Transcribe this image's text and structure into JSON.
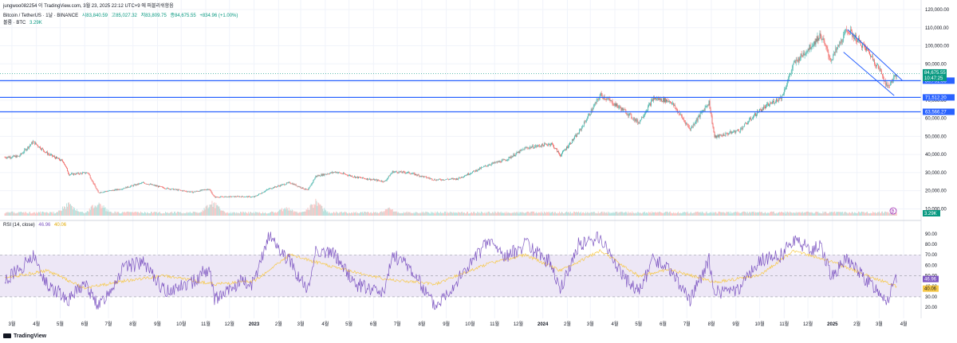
{
  "header": {
    "publish_line": "jungwoo082254 이 TradingView.com, 3월 23, 2025 22:12 UTC+9 에 퍼블리쉬함음",
    "symbol": "Bitcoin / TetherUS · 1날 · BINANCE",
    "open": "시83,840.59",
    "high": "고85,027.32",
    "low": "저83,809.75",
    "close": "종84,675.55",
    "change": "+834.96 (+1.00%)",
    "volume_label": "볼륨 · BTC",
    "volume_value": "3.29K"
  },
  "rsi_label": "RSI (14, close)",
  "rsi_value": "46.96",
  "rsi_ma_value": "40.06",
  "logo_text": "TradingView",
  "colors": {
    "up": "#26a69a",
    "down": "#ef5350",
    "level": "#2962ff",
    "rsi": "#7e57c2",
    "rsi_ma": "#f7c948",
    "rsi_band": "#ede7f6",
    "price_tag": "#089981",
    "volume_tag": "#089981"
  },
  "chart_data": [
    {
      "type": "candlestick",
      "title": "Bitcoin / TetherUS · 1날 · BINANCE",
      "y_ticks": [
        "120,000.00",
        "110,000.00",
        "100,000.00",
        "90,000.00",
        "80,000.00",
        "70,000.00",
        "60,000.00",
        "50,000.00",
        "40,000.00",
        "30,000.00",
        "20,000.00",
        "10,000.00"
      ],
      "ylim": [
        8000,
        120000
      ],
      "x_ticks": [
        "3월",
        "4월",
        "5월",
        "6월",
        "7월",
        "8월",
        "9월",
        "10월",
        "11월",
        "12월",
        "2023",
        "2월",
        "3월",
        "4월",
        "5월",
        "6월",
        "7월",
        "8월",
        "9월",
        "10월",
        "11월",
        "12월",
        "2024",
        "2월",
        "3월",
        "4월",
        "5월",
        "6월",
        "7월",
        "8월",
        "9월",
        "10월",
        "11월",
        "12월",
        "2025",
        "2월",
        "3월",
        "4월"
      ],
      "x_dates": [
        "2022-03-01",
        "2022-04-01",
        "2022-05-01",
        "2022-06-01",
        "2022-07-01",
        "2022-08-01",
        "2022-09-01",
        "2022-10-01",
        "2022-11-01",
        "2022-12-01",
        "2023-01-01",
        "2023-02-01",
        "2023-03-01",
        "2023-04-01",
        "2023-05-01",
        "2023-06-01",
        "2023-07-01",
        "2023-08-01",
        "2023-09-01",
        "2023-10-01",
        "2023-11-01",
        "2023-12-01",
        "2024-01-01",
        "2024-02-01",
        "2024-03-01",
        "2024-04-01",
        "2024-05-01",
        "2024-06-01",
        "2024-07-01",
        "2024-08-01",
        "2024-09-01",
        "2024-10-01",
        "2024-11-01",
        "2024-12-01",
        "2025-01-01",
        "2025-02-01",
        "2025-03-01",
        "2025-04-01"
      ],
      "close_path": [
        {
          "date": "2022-02-20",
          "close": 38500
        },
        {
          "date": "2022-03-10",
          "close": 39000
        },
        {
          "date": "2022-03-28",
          "close": 47000
        },
        {
          "date": "2022-04-15",
          "close": 40500
        },
        {
          "date": "2022-05-05",
          "close": 36000
        },
        {
          "date": "2022-05-12",
          "close": 29000
        },
        {
          "date": "2022-06-05",
          "close": 30000
        },
        {
          "date": "2022-06-18",
          "close": 19000
        },
        {
          "date": "2022-07-15",
          "close": 20800
        },
        {
          "date": "2022-08-14",
          "close": 24400
        },
        {
          "date": "2022-09-10",
          "close": 21500
        },
        {
          "date": "2022-10-15",
          "close": 19200
        },
        {
          "date": "2022-11-05",
          "close": 21000
        },
        {
          "date": "2022-11-12",
          "close": 16500
        },
        {
          "date": "2022-12-15",
          "close": 16800
        },
        {
          "date": "2023-01-01",
          "close": 16600
        },
        {
          "date": "2023-01-20",
          "close": 21100
        },
        {
          "date": "2023-02-15",
          "close": 24500
        },
        {
          "date": "2023-03-10",
          "close": 20200
        },
        {
          "date": "2023-03-20",
          "close": 28000
        },
        {
          "date": "2023-04-14",
          "close": 30400
        },
        {
          "date": "2023-05-10",
          "close": 27500
        },
        {
          "date": "2023-06-15",
          "close": 25100
        },
        {
          "date": "2023-06-25",
          "close": 30500
        },
        {
          "date": "2023-07-15",
          "close": 30000
        },
        {
          "date": "2023-08-18",
          "close": 26000
        },
        {
          "date": "2023-09-15",
          "close": 26600
        },
        {
          "date": "2023-10-25",
          "close": 34500
        },
        {
          "date": "2023-11-15",
          "close": 37000
        },
        {
          "date": "2023-12-10",
          "close": 43500
        },
        {
          "date": "2024-01-12",
          "close": 46000
        },
        {
          "date": "2024-01-23",
          "close": 39500
        },
        {
          "date": "2024-02-15",
          "close": 52000
        },
        {
          "date": "2024-03-14",
          "close": 73000
        },
        {
          "date": "2024-04-15",
          "close": 63500
        },
        {
          "date": "2024-05-01",
          "close": 57500
        },
        {
          "date": "2024-05-20",
          "close": 71000
        },
        {
          "date": "2024-06-10",
          "close": 69500
        },
        {
          "date": "2024-07-05",
          "close": 54000
        },
        {
          "date": "2024-07-29",
          "close": 69000
        },
        {
          "date": "2024-08-05",
          "close": 49500
        },
        {
          "date": "2024-09-06",
          "close": 53500
        },
        {
          "date": "2024-09-30",
          "close": 64000
        },
        {
          "date": "2024-10-29",
          "close": 72000
        },
        {
          "date": "2024-11-13",
          "close": 90000
        },
        {
          "date": "2024-12-05",
          "close": 100000
        },
        {
          "date": "2024-12-17",
          "close": 106000
        },
        {
          "date": "2024-12-30",
          "close": 92000
        },
        {
          "date": "2025-01-20",
          "close": 109000
        },
        {
          "date": "2025-02-15",
          "close": 97000
        },
        {
          "date": "2025-03-04",
          "close": 85000
        },
        {
          "date": "2025-03-11",
          "close": 77000
        },
        {
          "date": "2025-03-23",
          "close": 84675
        }
      ],
      "last_price": "84,675.55",
      "countdown": "10:47:25",
      "horizontal_levels": [
        {
          "value": 80751.66,
          "label": "80,751.66"
        },
        {
          "value": 71512.2,
          "label": "71,512.20"
        },
        {
          "value": 63566.27,
          "label": "63,566.27"
        }
      ],
      "channel_lines": [
        {
          "from": {
            "date": "2025-01-20",
            "price": 109000
          },
          "to": {
            "date": "2025-03-30",
            "price": 81000
          }
        },
        {
          "from": {
            "date": "2025-01-15",
            "price": 96500
          },
          "to": {
            "date": "2025-03-20",
            "price": 72500
          }
        }
      ],
      "volume": {
        "series_name": "볼륨 · BTC",
        "last_value": "3.29K",
        "peaks": [
          {
            "date": "2022-05-12",
            "level": 0.9
          },
          {
            "date": "2022-06-18",
            "level": 1.0
          },
          {
            "date": "2022-11-10",
            "level": 1.0
          },
          {
            "date": "2023-03-20",
            "level": 1.0
          },
          {
            "date": "2023-02-10",
            "level": 0.6
          },
          {
            "date": "2023-06-20",
            "level": 0.5
          }
        ]
      }
    },
    {
      "type": "line",
      "title": "RSI (14, close)",
      "y_ticks": [
        "90.00",
        "80.00",
        "70.00",
        "60.00",
        "50.00",
        "40.00",
        "30.00",
        "20.00"
      ],
      "ylim": [
        14,
        96
      ],
      "band": [
        30,
        70
      ],
      "midline": 50,
      "series": [
        {
          "name": "RSI (14, close)",
          "points": [
            {
              "date": "2022-02-20",
              "value": 45
            },
            {
              "date": "2022-03-28",
              "value": 68
            },
            {
              "date": "2022-04-15",
              "value": 42
            },
            {
              "date": "2022-05-12",
              "value": 28
            },
            {
              "date": "2022-06-01",
              "value": 44
            },
            {
              "date": "2022-06-18",
              "value": 20
            },
            {
              "date": "2022-07-20",
              "value": 58
            },
            {
              "date": "2022-08-14",
              "value": 62
            },
            {
              "date": "2022-09-10",
              "value": 36
            },
            {
              "date": "2022-10-15",
              "value": 44
            },
            {
              "date": "2022-11-05",
              "value": 58
            },
            {
              "date": "2022-11-12",
              "value": 27
            },
            {
              "date": "2022-12-15",
              "value": 44
            },
            {
              "date": "2023-01-01",
              "value": 42
            },
            {
              "date": "2023-01-20",
              "value": 88
            },
            {
              "date": "2023-02-15",
              "value": 64
            },
            {
              "date": "2023-03-10",
              "value": 36
            },
            {
              "date": "2023-03-20",
              "value": 76
            },
            {
              "date": "2023-04-14",
              "value": 70
            },
            {
              "date": "2023-05-10",
              "value": 42
            },
            {
              "date": "2023-06-15",
              "value": 34
            },
            {
              "date": "2023-06-25",
              "value": 70
            },
            {
              "date": "2023-07-15",
              "value": 60
            },
            {
              "date": "2023-08-18",
              "value": 21
            },
            {
              "date": "2023-09-15",
              "value": 46
            },
            {
              "date": "2023-10-25",
              "value": 84
            },
            {
              "date": "2023-11-15",
              "value": 68
            },
            {
              "date": "2023-12-10",
              "value": 80
            },
            {
              "date": "2024-01-12",
              "value": 62
            },
            {
              "date": "2024-01-23",
              "value": 36
            },
            {
              "date": "2024-02-15",
              "value": 80
            },
            {
              "date": "2024-03-14",
              "value": 86
            },
            {
              "date": "2024-04-15",
              "value": 46
            },
            {
              "date": "2024-05-01",
              "value": 34
            },
            {
              "date": "2024-05-20",
              "value": 66
            },
            {
              "date": "2024-06-10",
              "value": 56
            },
            {
              "date": "2024-07-05",
              "value": 26
            },
            {
              "date": "2024-07-29",
              "value": 66
            },
            {
              "date": "2024-08-05",
              "value": 34
            },
            {
              "date": "2024-09-06",
              "value": 36
            },
            {
              "date": "2024-09-30",
              "value": 64
            },
            {
              "date": "2024-10-29",
              "value": 70
            },
            {
              "date": "2024-11-13",
              "value": 86
            },
            {
              "date": "2024-12-05",
              "value": 74
            },
            {
              "date": "2024-12-17",
              "value": 80
            },
            {
              "date": "2024-12-30",
              "value": 50
            },
            {
              "date": "2025-01-20",
              "value": 66
            },
            {
              "date": "2025-02-15",
              "value": 44
            },
            {
              "date": "2025-03-04",
              "value": 34
            },
            {
              "date": "2025-03-11",
              "value": 26
            },
            {
              "date": "2025-03-23",
              "value": 47
            }
          ]
        },
        {
          "name": "RSI-based MA",
          "points": [
            {
              "date": "2022-02-20",
              "value": 48
            },
            {
              "date": "2022-04-15",
              "value": 55
            },
            {
              "date": "2022-06-01",
              "value": 38
            },
            {
              "date": "2022-07-20",
              "value": 45
            },
            {
              "date": "2022-09-10",
              "value": 50
            },
            {
              "date": "2022-11-12",
              "value": 42
            },
            {
              "date": "2023-01-01",
              "value": 45
            },
            {
              "date": "2023-02-15",
              "value": 70
            },
            {
              "date": "2023-04-14",
              "value": 58
            },
            {
              "date": "2023-06-15",
              "value": 47
            },
            {
              "date": "2023-08-18",
              "value": 42
            },
            {
              "date": "2023-10-25",
              "value": 62
            },
            {
              "date": "2023-12-10",
              "value": 70
            },
            {
              "date": "2024-01-23",
              "value": 55
            },
            {
              "date": "2024-03-14",
              "value": 74
            },
            {
              "date": "2024-05-01",
              "value": 50
            },
            {
              "date": "2024-06-10",
              "value": 56
            },
            {
              "date": "2024-08-05",
              "value": 44
            },
            {
              "date": "2024-09-30",
              "value": 50
            },
            {
              "date": "2024-11-13",
              "value": 74
            },
            {
              "date": "2024-12-30",
              "value": 64
            },
            {
              "date": "2025-02-15",
              "value": 50
            },
            {
              "date": "2025-03-23",
              "value": 40
            }
          ]
        }
      ]
    }
  ]
}
